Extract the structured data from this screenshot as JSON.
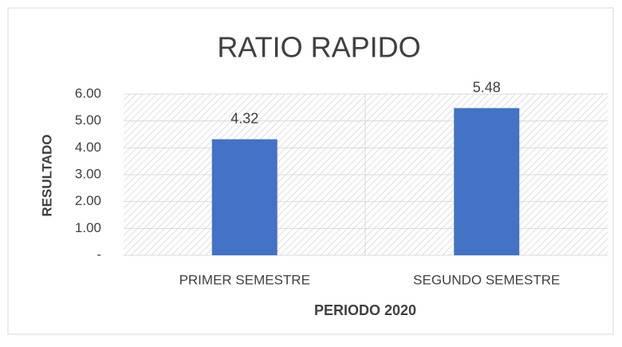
{
  "chart_data": {
    "type": "bar",
    "title": "RATIO RAPIDO",
    "categories": [
      "PRIMER SEMESTRE",
      "SEGUNDO SEMESTRE"
    ],
    "values": [
      4.32,
      5.48
    ],
    "color": "#4472c4",
    "x_label": "PERIODO 2020",
    "y_label": "RESULTADO",
    "ylim": [
      0,
      6
    ],
    "yticks": [
      {
        "value": 0,
        "label": "-"
      },
      {
        "value": 1,
        "label": "1.00"
      },
      {
        "value": 2,
        "label": "2.00"
      },
      {
        "value": 3,
        "label": "3.00"
      },
      {
        "value": 4,
        "label": "4.00"
      },
      {
        "value": 5,
        "label": "5.00"
      },
      {
        "value": 6,
        "label": "6.00"
      }
    ],
    "grid": true
  }
}
